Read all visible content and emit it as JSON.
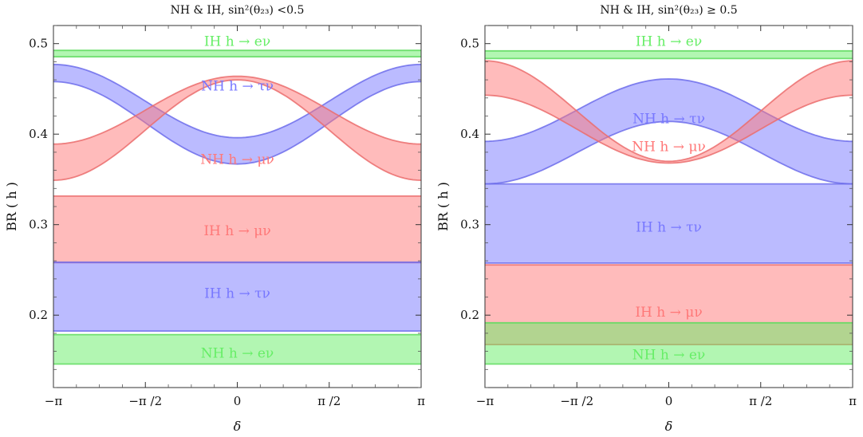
{
  "chart_data": [
    {
      "type": "area",
      "title": "NH & IH, sin²(θ₂₃) <0.5",
      "xlabel": "δ",
      "ylabel": "BR ( h )",
      "xlim": [
        -3.14159,
        3.14159
      ],
      "ylim": [
        0.12,
        0.52
      ],
      "x_ticks": [
        -3.14159,
        -1.5708,
        0,
        1.5708,
        3.14159
      ],
      "x_tick_labels": [
        "−π",
        "−π /2",
        "0",
        "π /2",
        "π"
      ],
      "y_ticks": [
        0.2,
        0.3,
        0.4,
        0.5
      ],
      "y_tick_labels": [
        "0.2",
        "0.3",
        "0.4",
        "0.5"
      ],
      "grid": false,
      "series": [
        {
          "name": "IH  h → eν",
          "color": "#66ee66",
          "kind": "flat",
          "low": 0.4855,
          "high": 0.4925,
          "label_y": 0.503
        },
        {
          "name": "NH  h → τν",
          "color": "#7777ff",
          "kind": "cos",
          "low_mid": 0.4125,
          "low_amp": -0.0455,
          "high_mid": 0.4365,
          "high_amp": -0.0405,
          "label_y": 0.4535
        },
        {
          "name": "NH  h → μν",
          "color": "#ff7777",
          "kind": "cos",
          "low_mid": 0.4045,
          "low_amp": 0.0555,
          "high_mid": 0.4265,
          "high_amp": 0.0375,
          "label_y": 0.3725
        },
        {
          "name": "IH  h → μν",
          "color": "#ff7777",
          "kind": "flat",
          "low": 0.258,
          "high": 0.3315,
          "label_y": 0.2935
        },
        {
          "name": "IH  h → τν",
          "color": "#7777ff",
          "kind": "flat",
          "low": 0.1825,
          "high": 0.2585,
          "label_y": 0.2245
        },
        {
          "name": "NH  h → eν",
          "color": "#66ee66",
          "kind": "flat",
          "low": 0.146,
          "high": 0.1785,
          "label_y": 0.1585
        }
      ]
    },
    {
      "type": "area",
      "title": "NH & IH, sin²(θ₂₃) ≥ 0.5",
      "xlabel": "δ",
      "ylabel": "BR ( h )",
      "xlim": [
        -3.14159,
        3.14159
      ],
      "ylim": [
        0.12,
        0.52
      ],
      "x_ticks": [
        -3.14159,
        -1.5708,
        0,
        1.5708,
        3.14159
      ],
      "x_tick_labels": [
        "−π",
        "−π /2",
        "0",
        "π /2",
        "π"
      ],
      "y_ticks": [
        0.2,
        0.3,
        0.4,
        0.5
      ],
      "y_tick_labels": [
        "0.2",
        "0.3",
        "0.4",
        "0.5"
      ],
      "grid": false,
      "series": [
        {
          "name": "IH  h → eν",
          "color": "#66ee66",
          "kind": "flat",
          "low": 0.4835,
          "high": 0.492,
          "label_y": 0.503
        },
        {
          "name": "NH  h → τν",
          "color": "#7777ff",
          "kind": "cos",
          "low_mid": 0.3795,
          "low_amp": 0.0345,
          "high_mid": 0.4265,
          "high_amp": 0.0345,
          "label_y": 0.4175
        },
        {
          "name": "NH  h → μν",
          "color": "#ff7777",
          "kind": "cos",
          "low_mid": 0.4055,
          "low_amp": -0.0375,
          "high_mid": 0.4255,
          "high_amp": -0.0555,
          "label_y": 0.3865
        },
        {
          "name": "IH  h → τν",
          "color": "#7777ff",
          "kind": "flat",
          "low": 0.2575,
          "high": 0.345,
          "label_y": 0.2975
        },
        {
          "name": "IH  h → μν",
          "color": "#ff7777",
          "kind": "flat",
          "low": 0.1675,
          "high": 0.2555,
          "label_y": 0.2035
        },
        {
          "name": "NH  h → eν",
          "color": "#66ee66",
          "kind": "flat",
          "low": 0.146,
          "high": 0.1915,
          "label_y": 0.1565
        }
      ]
    }
  ]
}
